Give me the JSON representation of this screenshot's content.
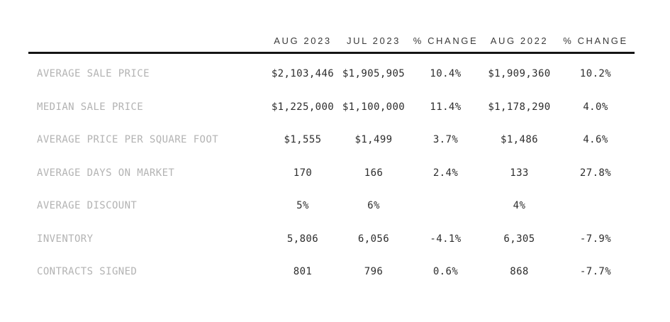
{
  "colors": {
    "background": "#ffffff",
    "header_text": "#3a3a3a",
    "label_text": "#b3b3b3",
    "value_text": "#2d2d2d",
    "rule": "#141414"
  },
  "chart_data": {
    "type": "table",
    "title": "",
    "columns": [
      "AUG 2023",
      "JUL 2023",
      "% CHANGE",
      "AUG 2022",
      "% CHANGE"
    ],
    "rows": [
      {
        "label": "AVERAGE SALE PRICE",
        "values": [
          "$2,103,446",
          "$1,905,905",
          "10.4%",
          "$1,909,360",
          "10.2%"
        ]
      },
      {
        "label": "MEDIAN SALE PRICE",
        "values": [
          "$1,225,000",
          "$1,100,000",
          "11.4%",
          "$1,178,290",
          "4.0%"
        ]
      },
      {
        "label": "AVERAGE PRICE PER SQUARE FOOT",
        "values": [
          "$1,555",
          "$1,499",
          "3.7%",
          "$1,486",
          "4.6%"
        ]
      },
      {
        "label": "AVERAGE DAYS ON MARKET",
        "values": [
          "170",
          "166",
          "2.4%",
          "133",
          "27.8%"
        ]
      },
      {
        "label": "AVERAGE DISCOUNT",
        "values": [
          "5%",
          "6%",
          "",
          "4%",
          ""
        ]
      },
      {
        "label": "INVENTORY",
        "values": [
          "5,806",
          "6,056",
          "-4.1%",
          "6,305",
          "-7.9%"
        ]
      },
      {
        "label": "CONTRACTS SIGNED",
        "values": [
          "801",
          "796",
          "0.6%",
          "868",
          "-7.7%"
        ]
      }
    ]
  }
}
